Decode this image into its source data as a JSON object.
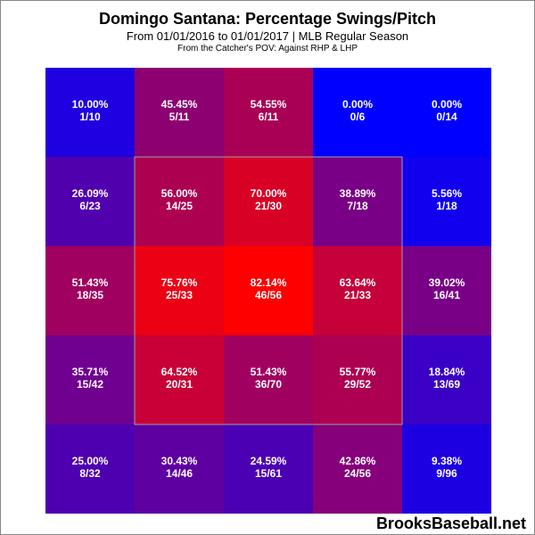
{
  "chart_data": {
    "type": "heatmap",
    "title": "Domingo Santana: Percentage Swings/Pitch",
    "subtitle": "From 01/01/2016 to 01/01/2017 | MLB Regular Season",
    "note": "From the Catcher's POV:   Against RHP & LHP",
    "rows": 5,
    "cols": 5,
    "strike_zone": {
      "row_start": 1,
      "row_end": 3,
      "col_start": 1,
      "col_end": 3
    },
    "color_scale": {
      "low": "#0000ff",
      "high": "#ff0000",
      "min": 0,
      "max": 82.14
    },
    "cells": [
      [
        {
          "pct": 10.0,
          "label": "10.00%",
          "count": "1/10"
        },
        {
          "pct": 45.45,
          "label": "45.45%",
          "count": "5/11"
        },
        {
          "pct": 54.55,
          "label": "54.55%",
          "count": "6/11"
        },
        {
          "pct": 0.0,
          "label": "0.00%",
          "count": "0/6"
        },
        {
          "pct": 0.0,
          "label": "0.00%",
          "count": "0/14"
        }
      ],
      [
        {
          "pct": 26.09,
          "label": "26.09%",
          "count": "6/23"
        },
        {
          "pct": 56.0,
          "label": "56.00%",
          "count": "14/25"
        },
        {
          "pct": 70.0,
          "label": "70.00%",
          "count": "21/30"
        },
        {
          "pct": 38.89,
          "label": "38.89%",
          "count": "7/18"
        },
        {
          "pct": 5.56,
          "label": "5.56%",
          "count": "1/18"
        }
      ],
      [
        {
          "pct": 51.43,
          "label": "51.43%",
          "count": "18/35"
        },
        {
          "pct": 75.76,
          "label": "75.76%",
          "count": "25/33"
        },
        {
          "pct": 82.14,
          "label": "82.14%",
          "count": "46/56"
        },
        {
          "pct": 63.64,
          "label": "63.64%",
          "count": "21/33"
        },
        {
          "pct": 39.02,
          "label": "39.02%",
          "count": "16/41"
        }
      ],
      [
        {
          "pct": 35.71,
          "label": "35.71%",
          "count": "15/42"
        },
        {
          "pct": 64.52,
          "label": "64.52%",
          "count": "20/31"
        },
        {
          "pct": 51.43,
          "label": "51.43%",
          "count": "36/70"
        },
        {
          "pct": 55.77,
          "label": "55.77%",
          "count": "29/52"
        },
        {
          "pct": 18.84,
          "label": "18.84%",
          "count": "13/69"
        }
      ],
      [
        {
          "pct": 25.0,
          "label": "25.00%",
          "count": "8/32"
        },
        {
          "pct": 30.43,
          "label": "30.43%",
          "count": "14/46"
        },
        {
          "pct": 24.59,
          "label": "24.59%",
          "count": "15/61"
        },
        {
          "pct": 42.86,
          "label": "42.86%",
          "count": "24/56"
        },
        {
          "pct": 9.38,
          "label": "9.38%",
          "count": "9/96"
        }
      ]
    ]
  },
  "watermark": "BrooksBaseball.net"
}
